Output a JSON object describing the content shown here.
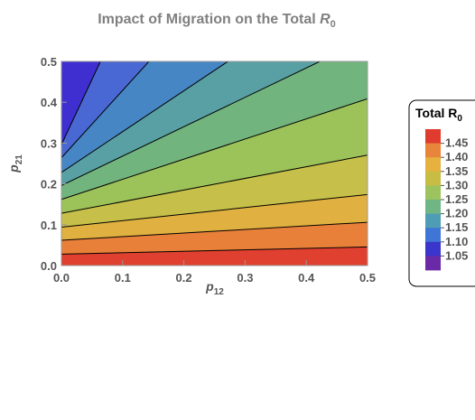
{
  "chart_data": {
    "type": "contour",
    "title_prefix": "Impact of Migration on the Total ",
    "title_symbol": "R",
    "title_subscript": "0",
    "xlabel": "p",
    "xlabel_subscript": "12",
    "ylabel": "p",
    "ylabel_subscript": "21",
    "xlim": [
      0,
      0.5
    ],
    "ylim": [
      0,
      0.5
    ],
    "x_ticks": [
      0.0,
      0.1,
      0.2,
      0.3,
      0.4,
      0.5
    ],
    "x_tick_labels": [
      "0.0",
      "0.1",
      "0.2",
      "0.3",
      "0.4",
      "0.5"
    ],
    "y_ticks": [
      0.0,
      0.1,
      0.2,
      0.3,
      0.4,
      0.5
    ],
    "y_tick_labels": [
      "0.0",
      "0.1",
      "0.2",
      "0.3",
      "0.4",
      "0.5"
    ],
    "contour_levels": [
      1.05,
      1.1,
      1.15,
      1.2,
      1.25,
      1.3,
      1.35,
      1.4,
      1.45
    ],
    "contour_slopes": [
      0.035,
      0.088,
      0.16,
      0.285,
      0.493,
      0.72,
      1.0,
      1.65,
      3.2,
      12.0,
      30.0
    ],
    "contour_y_intercepts": [
      0.028,
      0.062,
      0.094,
      0.128,
      0.162,
      0.196,
      0.228,
      0.264,
      0.296,
      0.5,
      0.5
    ],
    "band_colors": [
      "#e0402f",
      "#e8803a",
      "#e0b040",
      "#c6c04a",
      "#9cc25a",
      "#72b47e",
      "#58a0a4",
      "#4686c4",
      "#4a68d4",
      "#3f2fd0",
      "#6c2aa8"
    ],
    "legend": {
      "title_symbol": "Total R",
      "title_subscript": "0",
      "placement": "right",
      "labels": [
        "1.45",
        "1.40",
        "1.35",
        "1.30",
        "1.25",
        "1.20",
        "1.15",
        "1.10",
        "1.05"
      ],
      "colors": [
        "#df3b2f",
        "#e8853a",
        "#e6b13f",
        "#c7bc44",
        "#9cc35e",
        "#6fb684",
        "#4f9db5",
        "#3f76d6",
        "#3a35cc",
        "#6a2aa8"
      ]
    }
  }
}
